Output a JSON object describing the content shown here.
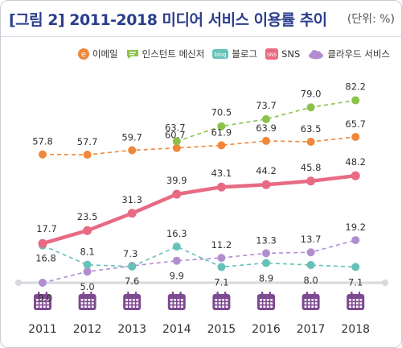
{
  "title": "[그림 2]  2011-2018 미디어 서비스 이용률 추이",
  "unit": "(단위: %)",
  "colors": {
    "email": "#f0873a",
    "instant": "#8bc34a",
    "blog": "#66c2b8",
    "sns": "#e86a83",
    "cloud": "#b08ed0",
    "axis": "#d7d9de",
    "calendar": "#7d4a91"
  },
  "legend_icons": {
    "email": "e-circle-icon",
    "instant": "speech-bubble-icon",
    "blog": "blog-badge-icon",
    "sns": "sns-badge-icon",
    "cloud": "cloud-icon"
  },
  "icon_text": {
    "email": "e",
    "blog": "blog",
    "sns": "SNS"
  },
  "axis_icon": "calendar-icon",
  "chart_data": {
    "type": "line",
    "categories": [
      "2011",
      "2012",
      "2013",
      "2014",
      "2015",
      "2016",
      "2017",
      "2018"
    ],
    "ylim": [
      0,
      90
    ],
    "grid": false,
    "legend_position": "top-right",
    "series": [
      {
        "key": "email",
        "name": "이메일",
        "values": [
          57.8,
          57.7,
          59.7,
          60.7,
          61.9,
          63.9,
          63.5,
          65.7
        ],
        "style": "dashed"
      },
      {
        "key": "instant",
        "name": "인스턴트 메신저",
        "values": [
          null,
          null,
          null,
          63.7,
          70.5,
          73.7,
          79.0,
          82.2
        ],
        "style": "dashed"
      },
      {
        "key": "blog",
        "name": "블로그",
        "values": [
          16.8,
          8.1,
          7.3,
          16.3,
          7.1,
          8.9,
          8.0,
          7.1
        ],
        "style": "dashed"
      },
      {
        "key": "sns",
        "name": "SNS",
        "values": [
          17.7,
          23.5,
          31.3,
          39.9,
          43.1,
          44.2,
          45.8,
          48.2
        ],
        "style": "solid"
      },
      {
        "key": "cloud",
        "name": "클라우드 서비스",
        "values": [
          0.0,
          5.0,
          7.6,
          9.9,
          11.2,
          13.3,
          13.7,
          19.2
        ],
        "style": "dashed"
      }
    ]
  }
}
